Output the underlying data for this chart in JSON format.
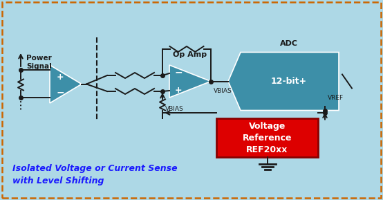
{
  "bg_color": "#add8e6",
  "border_color": "#cc6600",
  "fig_width": 5.54,
  "fig_height": 2.89,
  "title_text": "Isolated Voltage or Current Sense\nwith Level Shifting",
  "title_color": "#1a1aff",
  "label_opamp": "Op Amp",
  "label_adc": "ADC",
  "label_adc_inner": "12-bit+",
  "label_power": "Power\nSignal",
  "label_vref_box": "Voltage\nReference\nREF20xx",
  "label_vbias1": "VBIAS",
  "label_vbias2": "VBIAS",
  "label_vref": "VREF",
  "teal_color": "#3d8fa8",
  "red_color": "#dd0000",
  "wire_color": "#1a1a1a",
  "white_color": "#ffffff"
}
